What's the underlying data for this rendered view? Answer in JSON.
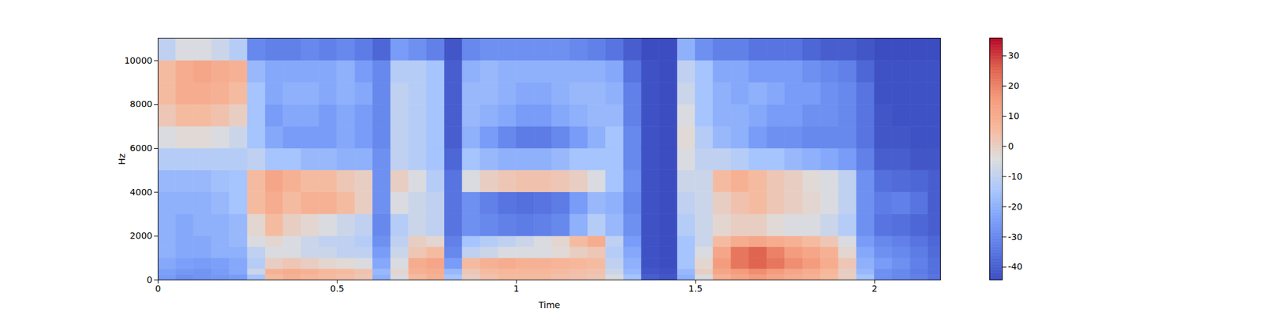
{
  "chart_data": {
    "type": "heatmap",
    "xlabel": "Time",
    "ylabel": "Hz",
    "xlim": [
      0,
      2.184
    ],
    "ylim": [
      0,
      11025
    ],
    "xticks": [
      0,
      0.5,
      1,
      1.5,
      2
    ],
    "yticks": [
      0,
      2000,
      4000,
      6000,
      8000,
      10000
    ],
    "x": [
      0,
      0.05,
      0.1,
      0.15,
      0.2,
      0.25,
      0.3,
      0.35,
      0.4,
      0.45,
      0.5,
      0.55,
      0.6,
      0.65,
      0.7,
      0.75,
      0.8,
      0.85,
      0.9,
      0.95,
      1.0,
      1.05,
      1.1,
      1.15,
      1.2,
      1.25,
      1.3,
      1.35,
      1.4,
      1.45,
      1.5,
      1.55,
      1.6,
      1.65,
      1.7,
      1.75,
      1.8,
      1.85,
      1.9,
      1.95,
      2.0,
      2.05,
      2.1,
      2.15
    ],
    "y": [
      0,
      250,
      500,
      1000,
      1500,
      2000,
      3000,
      4000,
      5000,
      6000,
      7000,
      8000,
      9000,
      10000
    ],
    "values": [
      [
        -25,
        -28,
        -27,
        -26,
        -25,
        -15,
        5,
        8,
        6,
        5,
        4,
        2,
        -20,
        -5,
        5,
        8,
        -15,
        0,
        3,
        5,
        5,
        5,
        4,
        3,
        2,
        -5,
        -15,
        -40,
        -42,
        -20,
        -5,
        8,
        12,
        15,
        12,
        10,
        8,
        5,
        0,
        -15,
        -28,
        -30,
        -32,
        -35
      ],
      [
        -24,
        -26,
        -27,
        -25,
        -22,
        -8,
        8,
        10,
        8,
        6,
        5,
        3,
        -18,
        -2,
        8,
        10,
        -18,
        2,
        5,
        6,
        6,
        6,
        5,
        4,
        3,
        -8,
        -18,
        -42,
        -43,
        -18,
        0,
        12,
        15,
        18,
        15,
        12,
        10,
        6,
        0,
        -18,
        -28,
        -30,
        -33,
        -36
      ],
      [
        -22,
        -24,
        -25,
        -24,
        -22,
        -12,
        0,
        2,
        0,
        -2,
        -3,
        -5,
        -22,
        -5,
        10,
        12,
        -25,
        5,
        8,
        10,
        8,
        8,
        7,
        6,
        5,
        -10,
        -20,
        -43,
        -44,
        -15,
        -2,
        15,
        22,
        25,
        22,
        18,
        15,
        10,
        2,
        -20,
        -25,
        -28,
        -32,
        -36
      ],
      [
        -20,
        -22,
        -22,
        -20,
        -20,
        -10,
        -5,
        -5,
        -8,
        -8,
        -10,
        -10,
        -25,
        -8,
        2,
        5,
        -30,
        -10,
        -8,
        -5,
        -5,
        -5,
        -3,
        0,
        2,
        -12,
        -22,
        -43,
        -44,
        -15,
        -5,
        12,
        22,
        25,
        20,
        15,
        12,
        8,
        -2,
        -22,
        -28,
        -30,
        -33,
        -37
      ],
      [
        -20,
        -22,
        -22,
        -20,
        -18,
        -5,
        -2,
        -5,
        -8,
        -10,
        -10,
        -12,
        -28,
        -10,
        0,
        -2,
        -32,
        -15,
        -12,
        -10,
        -8,
        -5,
        -2,
        5,
        10,
        -10,
        -25,
        -43,
        -44,
        -15,
        -8,
        5,
        10,
        12,
        10,
        8,
        5,
        2,
        -5,
        -25,
        -30,
        -32,
        -35,
        -38
      ],
      [
        -20,
        -22,
        -20,
        -20,
        -18,
        -2,
        5,
        0,
        -2,
        -5,
        -8,
        -10,
        -30,
        -12,
        -8,
        -10,
        -35,
        -28,
        -30,
        -32,
        -33,
        -32,
        -30,
        -20,
        -12,
        -18,
        -28,
        -43,
        -44,
        -12,
        -8,
        -2,
        0,
        0,
        -3,
        -5,
        -5,
        -8,
        -12,
        -28,
        -35,
        -36,
        -38,
        -40
      ],
      [
        -20,
        -20,
        -20,
        -18,
        -15,
        5,
        10,
        5,
        8,
        8,
        5,
        0,
        -28,
        -5,
        -8,
        -10,
        -35,
        -28,
        -32,
        -35,
        -36,
        -35,
        -33,
        -25,
        -18,
        -20,
        -30,
        -43,
        -44,
        -10,
        -8,
        0,
        3,
        5,
        2,
        0,
        -2,
        -5,
        -10,
        -28,
        -33,
        -32,
        -35,
        -40
      ],
      [
        -18,
        -18,
        -18,
        -16,
        -15,
        5,
        12,
        8,
        5,
        5,
        2,
        0,
        -28,
        0,
        -5,
        -12,
        -35,
        -5,
        0,
        2,
        3,
        3,
        2,
        0,
        -5,
        -15,
        -28,
        -43,
        -44,
        -8,
        -8,
        5,
        8,
        5,
        2,
        0,
        -3,
        -5,
        -10,
        -28,
        -36,
        -37,
        -38,
        -40
      ],
      [
        -12,
        -12,
        -12,
        -12,
        -12,
        -10,
        -15,
        -15,
        -18,
        -18,
        -20,
        -20,
        -28,
        -10,
        -12,
        -15,
        -38,
        -15,
        -18,
        -20,
        -20,
        -20,
        -18,
        -15,
        -15,
        -15,
        -30,
        -43,
        -44,
        -5,
        -10,
        -10,
        -12,
        -15,
        -15,
        -18,
        -20,
        -22,
        -25,
        -32,
        -40,
        -40,
        -42,
        -42
      ],
      [
        -5,
        -3,
        -3,
        -5,
        -8,
        -15,
        -22,
        -25,
        -25,
        -25,
        -22,
        -25,
        -30,
        -10,
        -12,
        -15,
        -40,
        -20,
        -25,
        -30,
        -33,
        -33,
        -30,
        -25,
        -20,
        -15,
        -30,
        -43,
        -44,
        -3,
        -12,
        -18,
        -20,
        -25,
        -28,
        -28,
        -30,
        -30,
        -30,
        -35,
        -42,
        -42,
        -43,
        -43
      ],
      [
        2,
        5,
        5,
        3,
        0,
        -15,
        -25,
        -22,
        -22,
        -25,
        -22,
        -25,
        -30,
        -10,
        -12,
        -15,
        -40,
        -18,
        -20,
        -22,
        -25,
        -25,
        -22,
        -20,
        -18,
        -18,
        -32,
        -43,
        -44,
        -5,
        -15,
        -20,
        -20,
        -22,
        -25,
        -25,
        -28,
        -28,
        -30,
        -35,
        -42,
        -43,
        -43,
        -43
      ],
      [
        5,
        10,
        10,
        8,
        5,
        -15,
        -22,
        -20,
        -20,
        -22,
        -20,
        -22,
        -30,
        -10,
        -12,
        -15,
        -40,
        -18,
        -18,
        -20,
        -22,
        -22,
        -20,
        -18,
        -18,
        -20,
        -32,
        -43,
        -44,
        -8,
        -15,
        -20,
        -22,
        -20,
        -22,
        -25,
        -25,
        -28,
        -30,
        -35,
        -43,
        -43,
        -43,
        -43
      ],
      [
        5,
        10,
        12,
        10,
        8,
        -18,
        -22,
        -22,
        -22,
        -22,
        -20,
        -25,
        -30,
        -12,
        -12,
        -15,
        -40,
        -20,
        -18,
        -20,
        -20,
        -20,
        -20,
        -20,
        -20,
        -22,
        -35,
        -43,
        -44,
        -10,
        -15,
        -22,
        -22,
        -25,
        -25,
        -25,
        -28,
        -30,
        -32,
        -38,
        -43,
        -43,
        -43,
        -43
      ],
      [
        -10,
        -5,
        -5,
        -8,
        -12,
        -30,
        -32,
        -32,
        -30,
        -32,
        -30,
        -33,
        -38,
        -25,
        -28,
        -32,
        -42,
        -30,
        -28,
        -28,
        -28,
        -28,
        -28,
        -30,
        -32,
        -35,
        -40,
        -44,
        -44,
        -20,
        -28,
        -32,
        -32,
        -35,
        -35,
        -35,
        -38,
        -40,
        -40,
        -42,
        -44,
        -44,
        -44,
        -44
      ]
    ],
    "colorbar": {
      "range": [
        -44.3,
        35.9
      ],
      "ticks": [
        -40,
        -30,
        -20,
        -10,
        0,
        10,
        20,
        30
      ]
    }
  }
}
